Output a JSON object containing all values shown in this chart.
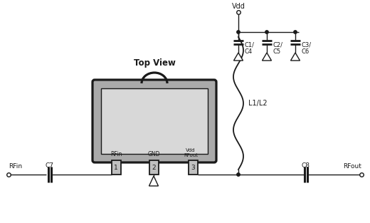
{
  "bg_color": "#ffffff",
  "line_color": "#1a1a1a",
  "ic_outer_color": "#888888",
  "ic_inner_color": "#d8d8d8",
  "pin_color": "#c0c0c0",
  "title": "Top View",
  "labels": {
    "vdd": "Vdd",
    "rfin_pin": "RFin",
    "gnd_pin": "GND",
    "vdd_rfout_pin": "Vdd\nRFout",
    "pin1": "1",
    "pin2": "2",
    "pin3": "3",
    "c7": "C7",
    "c8": "C8",
    "c1c4": "C1/\nC4",
    "c2c5": "C2/\nC5",
    "c3c6": "C3/\nC6",
    "l1l2": "L1/L2",
    "rfin": "RFin",
    "rfout": "RFout"
  }
}
